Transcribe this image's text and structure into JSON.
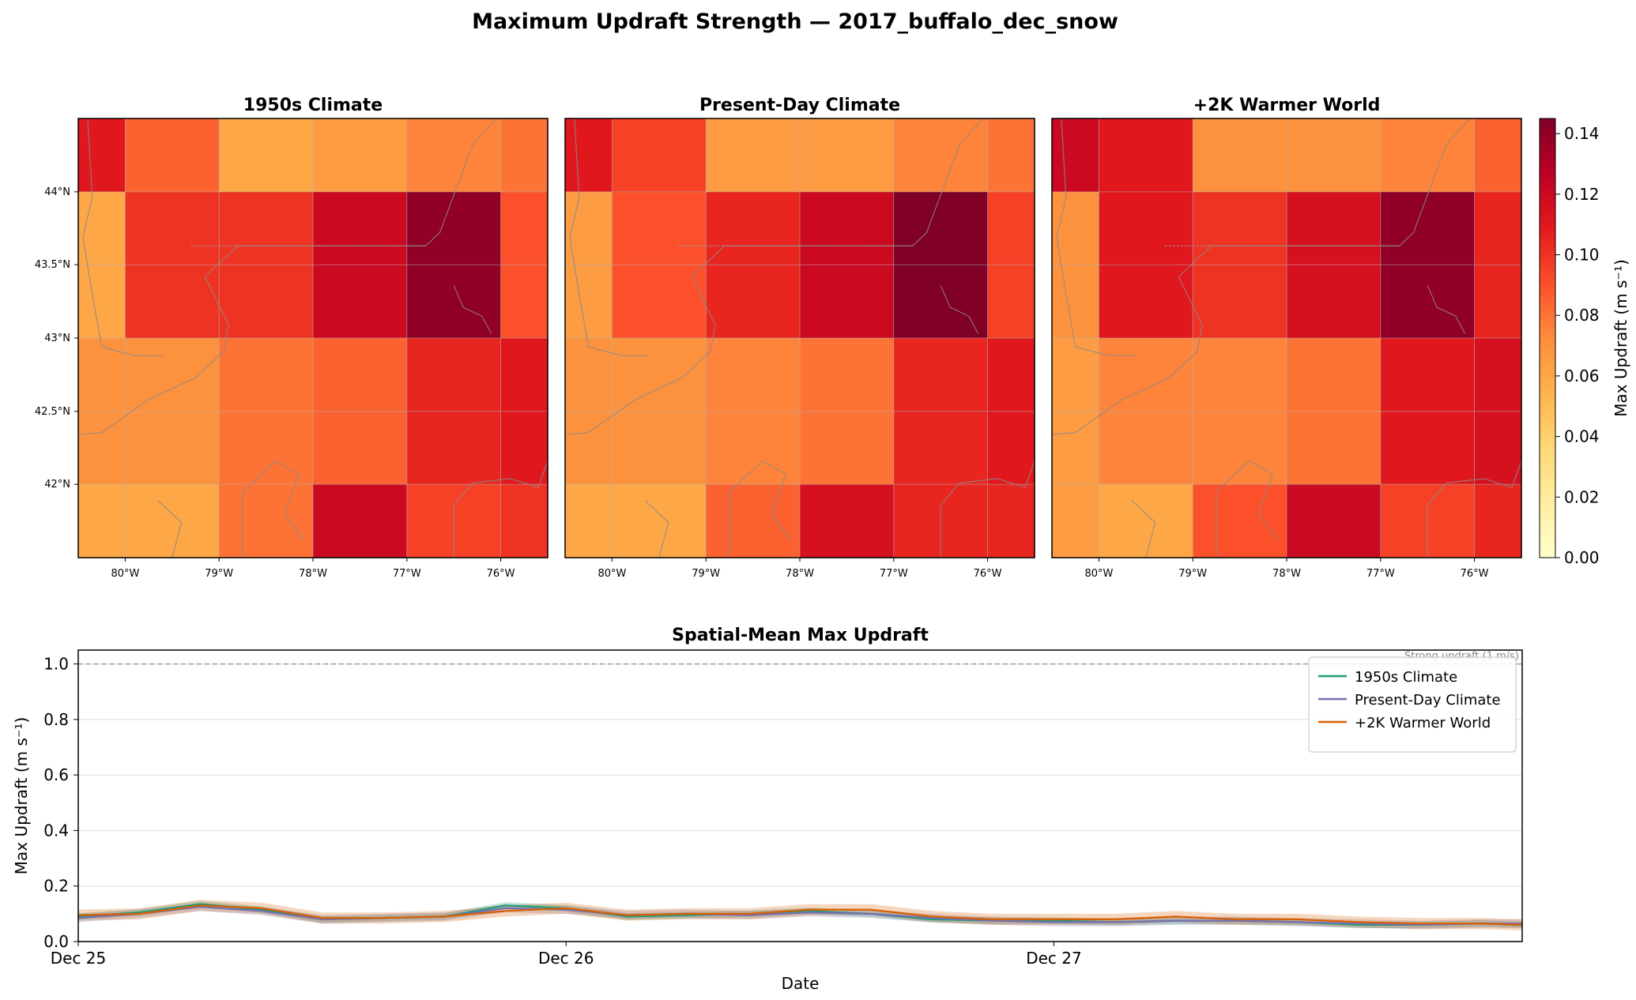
{
  "suptitle": "Maximum Updraft Strength — 2017_buffalo_dec_snow",
  "colors": {
    "ramp": [
      "#ffffcc",
      "#ffeda0",
      "#fed976",
      "#feb24c",
      "#fd8d3c",
      "#fc4e2a",
      "#e31a1c",
      "#bd0026",
      "#800026"
    ],
    "series": [
      "#1b9e77",
      "#7570b3",
      "#d95f02"
    ],
    "grid": "#b0b0b0",
    "coast": "#8a8a8a"
  },
  "chart_data": [
    {
      "type": "heatmap",
      "title": "1950s Climate",
      "x_ticks": [
        "80°W",
        "79°W",
        "78°W",
        "77°W",
        "76°W"
      ],
      "y_ticks": [
        "44°N",
        "43.5°N",
        "43°N",
        "42.5°N",
        "42°N"
      ],
      "x_centers": [
        -80.5,
        -79.5,
        -78.5,
        -77.5,
        -76.5,
        -75.5
      ],
      "y_centers": [
        44.25,
        43.5,
        42.75,
        42.0
      ],
      "xlim": [
        -80.5,
        -75.5
      ],
      "ylim": [
        41.75,
        44.5
      ],
      "values": [
        [
          0.11,
          0.085,
          0.06,
          0.065,
          0.075,
          0.08
        ],
        [
          0.06,
          0.1,
          0.1,
          0.12,
          0.14,
          0.09
        ],
        [
          0.07,
          0.07,
          0.08,
          0.085,
          0.105,
          0.11
        ],
        [
          0.06,
          0.06,
          0.08,
          0.12,
          0.095,
          0.1
        ]
      ]
    },
    {
      "type": "heatmap",
      "title": "Present-Day Climate",
      "x_ticks": [
        "80°W",
        "79°W",
        "78°W",
        "77°W",
        "76°W"
      ],
      "y_ticks": [],
      "x_centers": [
        -80.5,
        -79.5,
        -78.5,
        -77.5,
        -76.5,
        -75.5
      ],
      "y_centers": [
        44.25,
        43.5,
        42.75,
        42.0
      ],
      "xlim": [
        -80.5,
        -75.5
      ],
      "ylim": [
        41.75,
        44.5
      ],
      "values": [
        [
          0.11,
          0.095,
          0.065,
          0.065,
          0.075,
          0.08
        ],
        [
          0.065,
          0.09,
          0.105,
          0.12,
          0.145,
          0.095
        ],
        [
          0.07,
          0.07,
          0.075,
          0.08,
          0.105,
          0.11
        ],
        [
          0.06,
          0.06,
          0.085,
          0.115,
          0.105,
          0.105
        ]
      ]
    },
    {
      "type": "heatmap",
      "title": "+2K Warmer World",
      "x_ticks": [
        "80°W",
        "79°W",
        "78°W",
        "77°W",
        "76°W"
      ],
      "y_ticks": [],
      "x_centers": [
        -80.5,
        -79.5,
        -78.5,
        -77.5,
        -76.5,
        -75.5
      ],
      "y_centers": [
        44.25,
        43.5,
        42.75,
        42.0
      ],
      "xlim": [
        -80.5,
        -75.5
      ],
      "ylim": [
        41.75,
        44.5
      ],
      "values": [
        [
          0.12,
          0.11,
          0.07,
          0.07,
          0.075,
          0.085
        ],
        [
          0.07,
          0.11,
          0.1,
          0.115,
          0.14,
          0.105
        ],
        [
          0.065,
          0.075,
          0.075,
          0.08,
          0.11,
          0.115
        ],
        [
          0.065,
          0.06,
          0.09,
          0.12,
          0.095,
          0.105
        ]
      ]
    },
    {
      "type": "colorbar",
      "label": "Max Updraft (m s⁻¹)",
      "range": [
        0,
        0.145
      ],
      "ticks": [
        "0.00",
        "0.02",
        "0.04",
        "0.06",
        "0.08",
        "0.10",
        "0.12",
        "0.14"
      ]
    },
    {
      "type": "line",
      "title": "Spatial-Mean Max Updraft",
      "xlabel": "Date",
      "ylabel": "Max Updraft (m s⁻¹)",
      "x_ticks": [
        "Dec 25",
        "Dec 26",
        "Dec 27"
      ],
      "y_ticks": [
        "0.0",
        "0.2",
        "0.4",
        "0.6",
        "0.8",
        "1.0"
      ],
      "ylim": [
        0,
        1.05
      ],
      "xlim_days": [
        0,
        2.96
      ],
      "threshold": {
        "value": 1.0,
        "label": "Strong updraft (1 m/s)"
      },
      "legend": "top-right",
      "x_days": [
        0,
        0.125,
        0.25,
        0.375,
        0.5,
        0.625,
        0.75,
        0.875,
        1,
        1.125,
        1.25,
        1.375,
        1.5,
        1.625,
        1.75,
        1.875,
        2,
        2.125,
        2.25,
        2.375,
        2.5,
        2.625,
        2.75,
        2.875,
        2.96
      ],
      "series": [
        {
          "name": "1950s Climate",
          "values": [
            0.09,
            0.105,
            0.135,
            0.115,
            0.08,
            0.085,
            0.09,
            0.13,
            0.12,
            0.09,
            0.095,
            0.1,
            0.11,
            0.1,
            0.08,
            0.075,
            0.075,
            0.07,
            0.075,
            0.075,
            0.07,
            0.06,
            0.06,
            0.065,
            0.06
          ],
          "band": 0.012
        },
        {
          "name": "Present-Day Climate",
          "values": [
            0.085,
            0.1,
            0.125,
            0.11,
            0.08,
            0.085,
            0.09,
            0.12,
            0.115,
            0.095,
            0.1,
            0.095,
            0.105,
            0.1,
            0.085,
            0.075,
            0.07,
            0.07,
            0.075,
            0.075,
            0.07,
            0.065,
            0.06,
            0.065,
            0.065
          ],
          "band": 0.015
        },
        {
          "name": "+2K Warmer World",
          "values": [
            0.095,
            0.1,
            0.13,
            0.12,
            0.085,
            0.085,
            0.09,
            0.11,
            0.12,
            0.095,
            0.1,
            0.1,
            0.115,
            0.115,
            0.09,
            0.08,
            0.08,
            0.08,
            0.09,
            0.08,
            0.08,
            0.07,
            0.065,
            0.065,
            0.06
          ],
          "band": 0.02
        }
      ]
    }
  ]
}
